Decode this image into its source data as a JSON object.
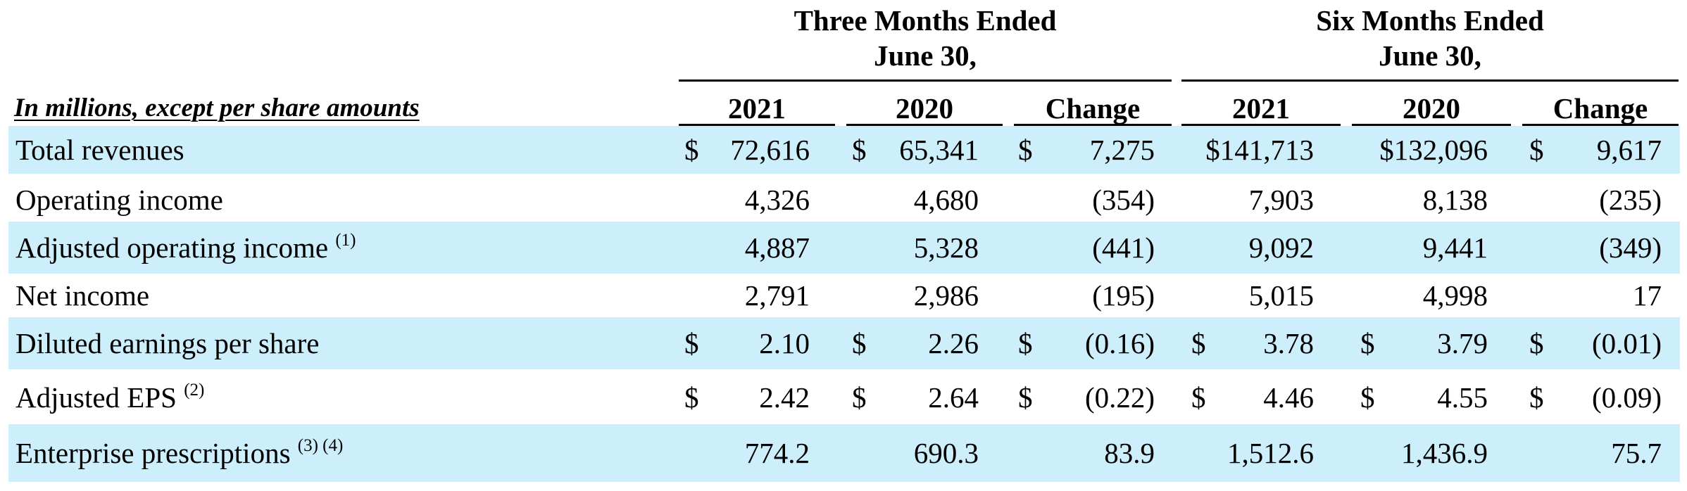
{
  "header": {
    "three_months_line1": "Three Months Ended",
    "three_months_line2": "June 30,",
    "six_months_line1": "Six Months Ended",
    "six_months_line2": "June 30,",
    "caption": "In millions, except per share amounts",
    "columns": [
      "2021",
      "2020",
      "Change",
      "2021",
      "2020",
      "Change"
    ]
  },
  "currency_symbol": "$",
  "shade_color": "#cdeefb",
  "rows": [
    {
      "label": "Total revenues",
      "note": "",
      "values": [
        "72,616",
        "65,341",
        "7,275",
        "$141,713",
        "$132,096",
        "9,617"
      ],
      "dollars": [
        true,
        true,
        true,
        false,
        false,
        true
      ],
      "shaded": true
    },
    {
      "label": "Operating income",
      "note": "",
      "values": [
        "4,326",
        "4,680",
        "(354)",
        "7,903",
        "8,138",
        "(235)"
      ],
      "dollars": [
        false,
        false,
        false,
        false,
        false,
        false
      ],
      "shaded": false
    },
    {
      "label": "Adjusted operating income",
      "note": "(1)",
      "values": [
        "4,887",
        "5,328",
        "(441)",
        "9,092",
        "9,441",
        "(349)"
      ],
      "dollars": [
        false,
        false,
        false,
        false,
        false,
        false
      ],
      "shaded": true
    },
    {
      "label": "Net income",
      "note": "",
      "values": [
        "2,791",
        "2,986",
        "(195)",
        "5,015",
        "4,998",
        "17"
      ],
      "dollars": [
        false,
        false,
        false,
        false,
        false,
        false
      ],
      "shaded": false
    },
    {
      "label": "Diluted earnings per share",
      "note": "",
      "values": [
        "2.10",
        "2.26",
        "(0.16)",
        "3.78",
        "3.79",
        "(0.01)"
      ],
      "dollars": [
        true,
        true,
        true,
        true,
        true,
        true
      ],
      "shaded": true
    },
    {
      "label": "Adjusted EPS",
      "note": "(2)",
      "values": [
        "2.42",
        "2.64",
        "(0.22)",
        "4.46",
        "4.55",
        "(0.09)"
      ],
      "dollars": [
        true,
        true,
        true,
        true,
        true,
        true
      ],
      "shaded": false
    },
    {
      "label": "Enterprise prescriptions",
      "note": "(3) (4)",
      "values": [
        "774.2",
        "690.3",
        "83.9",
        "1,512.6",
        "1,436.9",
        "75.7"
      ],
      "dollars": [
        false,
        false,
        false,
        false,
        false,
        false
      ],
      "shaded": true
    }
  ]
}
